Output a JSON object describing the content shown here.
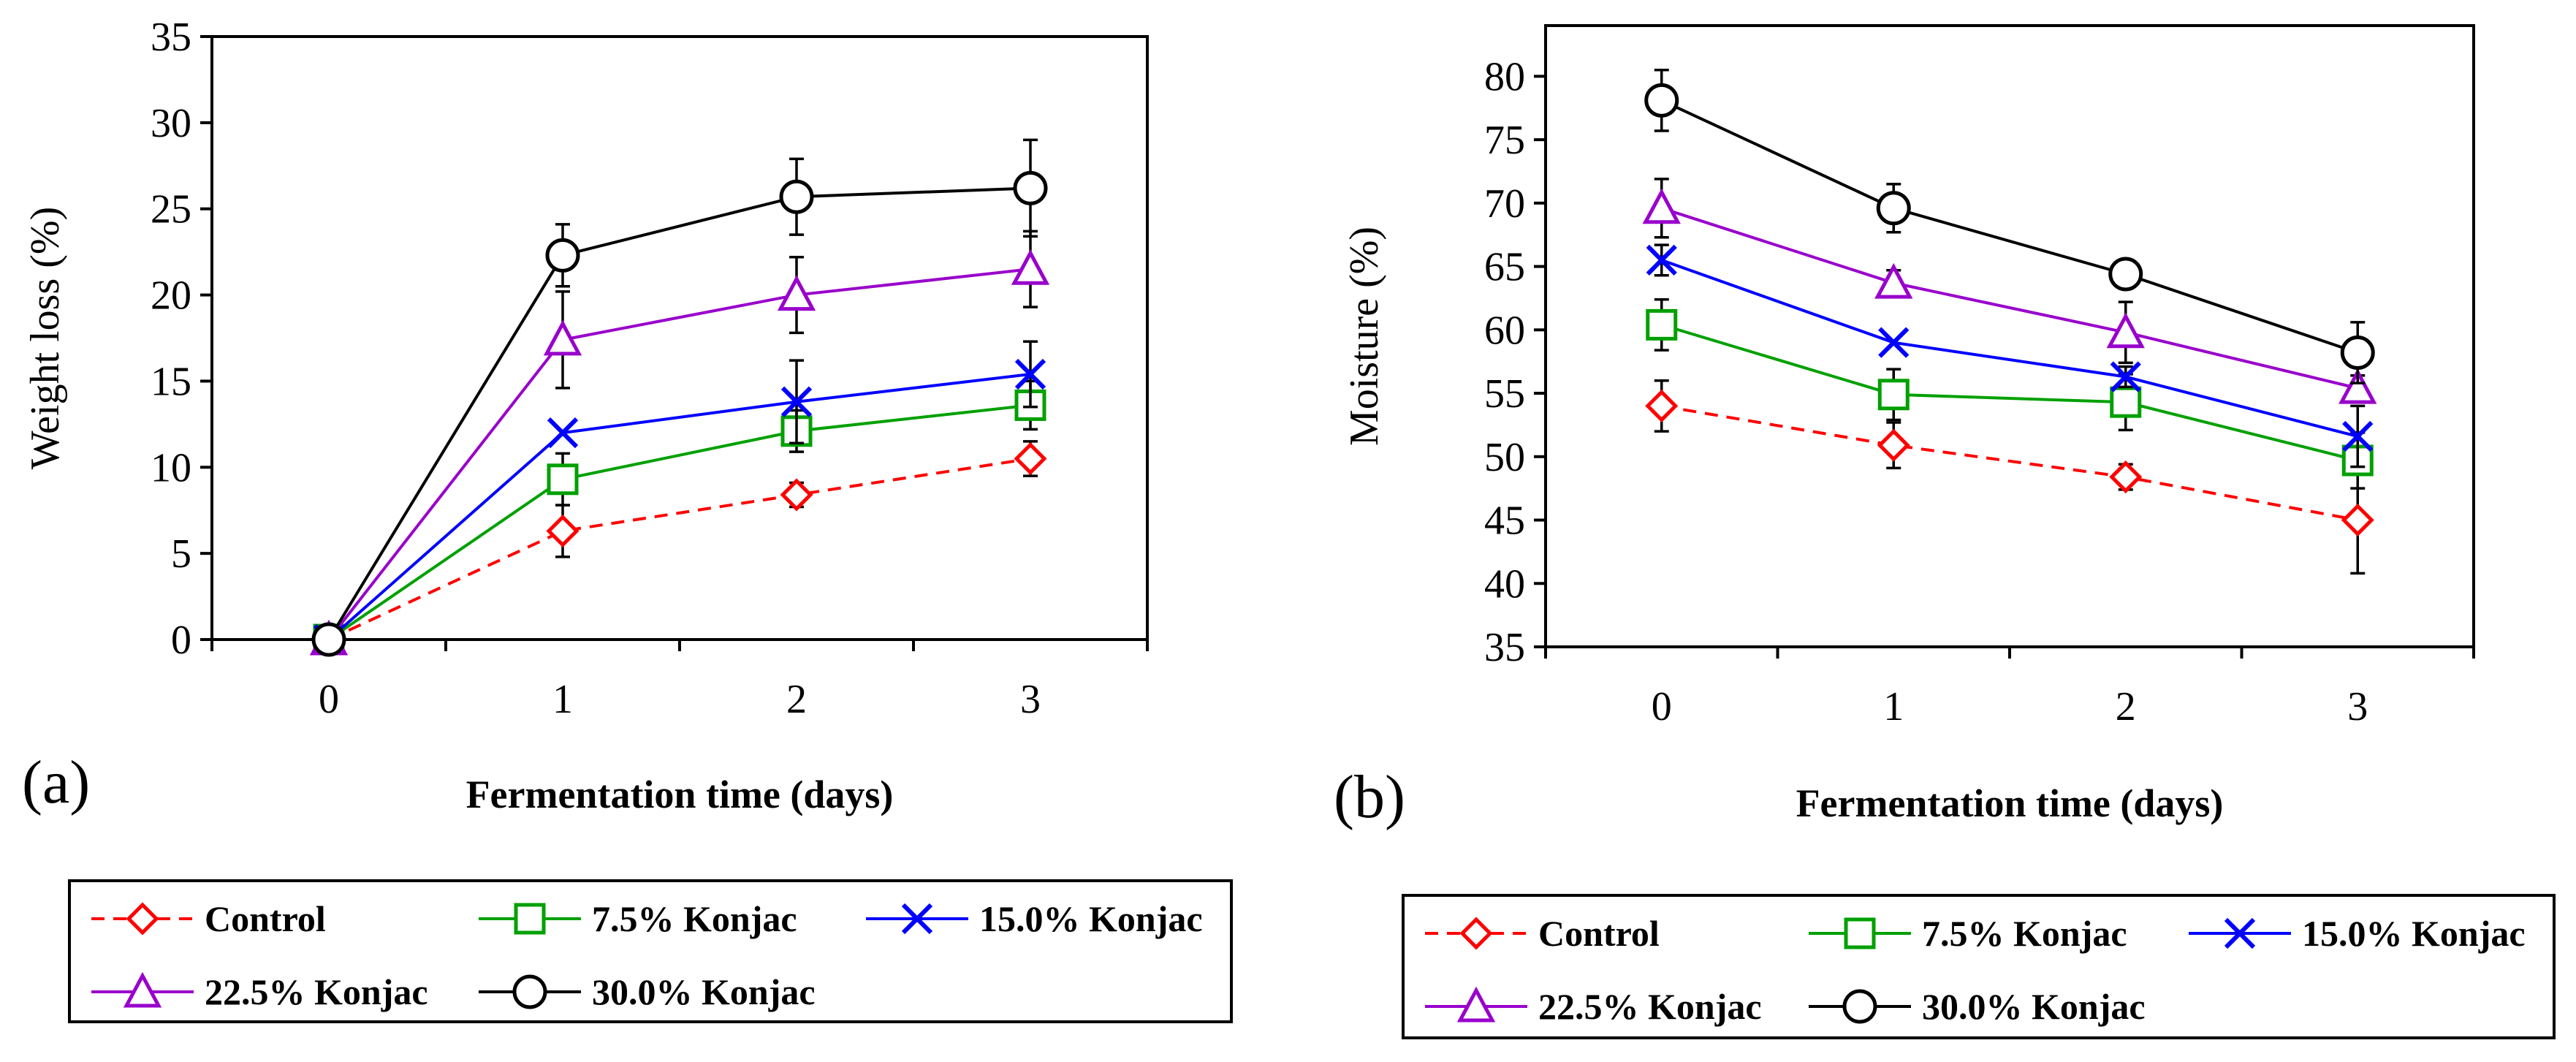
{
  "colors": {
    "control": "#ff0000",
    "k75": "#00a000",
    "k150": "#0000ff",
    "k225": "#9900cc",
    "k300": "#000000"
  },
  "legend": [
    "Control",
    "7.5% Konjac",
    "15.0% Konjac",
    "22.5% Konjac",
    "30.0% Konjac"
  ],
  "chart_data": [
    {
      "type": "line",
      "panel_label": "(a)",
      "xlabel": "Fermentation time (days)",
      "ylabel": "Weight loss (%)",
      "x": [
        0,
        1,
        2,
        3
      ],
      "x_ticks": [
        "0",
        "1",
        "2",
        "3"
      ],
      "xlim": [
        -0.5,
        3.5
      ],
      "ylim": [
        0,
        35
      ],
      "y_ticks": [
        "0",
        "5",
        "10",
        "15",
        "20",
        "25",
        "30",
        "35"
      ],
      "series": [
        {
          "name": "Control",
          "values": [
            0,
            6.3,
            8.4,
            10.5
          ],
          "errors": [
            0,
            1.5,
            0.7,
            1.0
          ]
        },
        {
          "name": "7.5% Konjac",
          "values": [
            0,
            9.3,
            12.1,
            13.6
          ],
          "errors": [
            0,
            1.5,
            1.2,
            1.4
          ]
        },
        {
          "name": "15.0% Konjac",
          "values": [
            0,
            12.0,
            13.8,
            15.4
          ],
          "errors": [
            0,
            0.0,
            2.4,
            1.9
          ]
        },
        {
          "name": "22.5% Konjac",
          "values": [
            0,
            17.4,
            20.0,
            21.5
          ],
          "errors": [
            0,
            2.8,
            2.2,
            2.2
          ]
        },
        {
          "name": "30.0% Konjac",
          "values": [
            0,
            22.3,
            25.7,
            26.2
          ],
          "errors": [
            0,
            1.8,
            2.2,
            2.8
          ]
        }
      ]
    },
    {
      "type": "line",
      "panel_label": "(b)",
      "xlabel": "Fermentation time (days)",
      "ylabel": "Moisture (%)",
      "x": [
        0,
        1,
        2,
        3
      ],
      "x_ticks": [
        "0",
        "1",
        "2",
        "3"
      ],
      "xlim": [
        -0.5,
        3.5
      ],
      "ylim": [
        35,
        84
      ],
      "y_ticks": [
        "35",
        "40",
        "45",
        "50",
        "55",
        "60",
        "65",
        "70",
        "75",
        "80"
      ],
      "series": [
        {
          "name": "Control",
          "values": [
            54.0,
            50.9,
            48.4,
            45.0
          ],
          "errors": [
            2.0,
            1.8,
            1.0,
            4.2
          ]
        },
        {
          "name": "7.5% Konjac",
          "values": [
            60.4,
            54.9,
            54.3,
            49.7
          ],
          "errors": [
            2.0,
            2.0,
            2.2,
            2.2
          ]
        },
        {
          "name": "15.0% Konjac",
          "values": [
            65.5,
            59.0,
            56.3,
            51.6
          ],
          "errors": [
            1.2,
            0.0,
            0.8,
            2.4
          ]
        },
        {
          "name": "22.5% Konjac",
          "values": [
            69.6,
            63.7,
            59.8,
            55.4
          ],
          "errors": [
            2.3,
            1.0,
            2.4,
            1.0
          ]
        },
        {
          "name": "30.0% Konjac",
          "values": [
            78.1,
            69.6,
            64.4,
            58.2
          ],
          "errors": [
            2.4,
            1.9,
            1.0,
            2.4
          ]
        }
      ]
    }
  ]
}
